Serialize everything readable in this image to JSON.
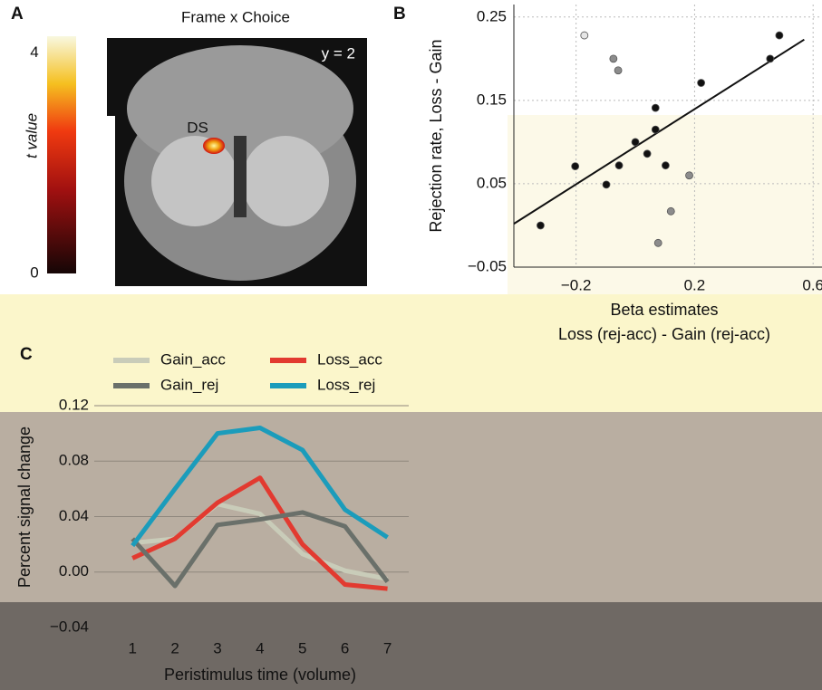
{
  "panel_a": {
    "panel_label": "A",
    "title": "Frame x Choice",
    "slice_label": "y = 2",
    "region_label": "DS",
    "colorbar": {
      "label": "t value",
      "ticks": [
        0,
        4
      ],
      "lim": [
        0,
        4.3
      ]
    }
  },
  "chart_data": [
    {
      "type": "scatter",
      "panel_label": "B",
      "ylabel": "Rejection rate, Loss - Gain",
      "xlabel": "Beta estimates",
      "xlabel2": "Loss (rej-acc) - Gain (rej-acc)",
      "xlim": [
        -0.41,
        0.63
      ],
      "ylim": [
        -0.05,
        0.265
      ],
      "xticks": [
        {
          "value": -0.2,
          "label": "−0.2"
        },
        0.2,
        0.6
      ],
      "yticks": [
        0.25,
        0.15,
        0.05,
        {
          "value": -0.05,
          "label": "−0.05"
        }
      ],
      "grid": true,
      "series": [
        {
          "color": "#111111",
          "x": [
            0.486,
            0.455,
            0.222,
            0.068,
            0.068,
            0.0,
            0.04,
            -0.055,
            -0.203,
            0.102,
            -0.098,
            -0.32
          ],
          "y": [
            0.228,
            0.2,
            0.171,
            0.141,
            0.115,
            0.1,
            0.086,
            0.072,
            0.071,
            0.072,
            0.049,
            0.0
          ]
        },
        {
          "color": "#8c8c8c",
          "x": [
            -0.074,
            -0.058,
            0.182,
            0.12,
            0.077
          ],
          "y": [
            0.2,
            0.186,
            0.06,
            0.017,
            -0.021
          ]
        },
        {
          "color": "#e6e6e6",
          "x": [
            -0.172
          ],
          "y": [
            0.228
          ]
        }
      ],
      "fit_line": {
        "color": "#111111",
        "x": [
          -0.41,
          0.57
        ],
        "y": [
          0.002,
          0.223
        ]
      }
    },
    {
      "type": "line",
      "panel_label": "C",
      "ylabel": "Percent signal change",
      "xlabel": "Peristimulus time (volume)",
      "x": [
        1,
        2,
        3,
        4,
        5,
        6,
        7
      ],
      "xlim": [
        0.1,
        7.5
      ],
      "xticks": [
        1,
        2,
        3,
        4,
        5,
        6,
        7
      ],
      "ylim": [
        -0.04,
        0.12
      ],
      "yticks": [
        0.12,
        0.08,
        0.04,
        {
          "value": 0,
          "label": "0.00"
        },
        {
          "value": -0.04,
          "label": "−0.04"
        }
      ],
      "grid": true,
      "series": [
        {
          "name": "Gain_acc",
          "color": "#c9ccb9",
          "values": [
            0.021,
            0.024,
            0.049,
            0.042,
            0.013,
            0.001,
            -0.005
          ]
        },
        {
          "name": "Loss_acc",
          "color": "#e23a30",
          "values": [
            0.01,
            0.024,
            0.05,
            0.068,
            0.02,
            -0.009,
            -0.012
          ]
        },
        {
          "name": "Gain_rej",
          "color": "#6a706a",
          "values": [
            0.024,
            -0.01,
            0.034,
            0.038,
            0.043,
            0.033,
            -0.007
          ]
        },
        {
          "name": "Loss_rej",
          "color": "#1b9cbb",
          "values": [
            0.019,
            0.06,
            0.1,
            0.104,
            0.088,
            0.045,
            0.025
          ]
        }
      ]
    }
  ]
}
